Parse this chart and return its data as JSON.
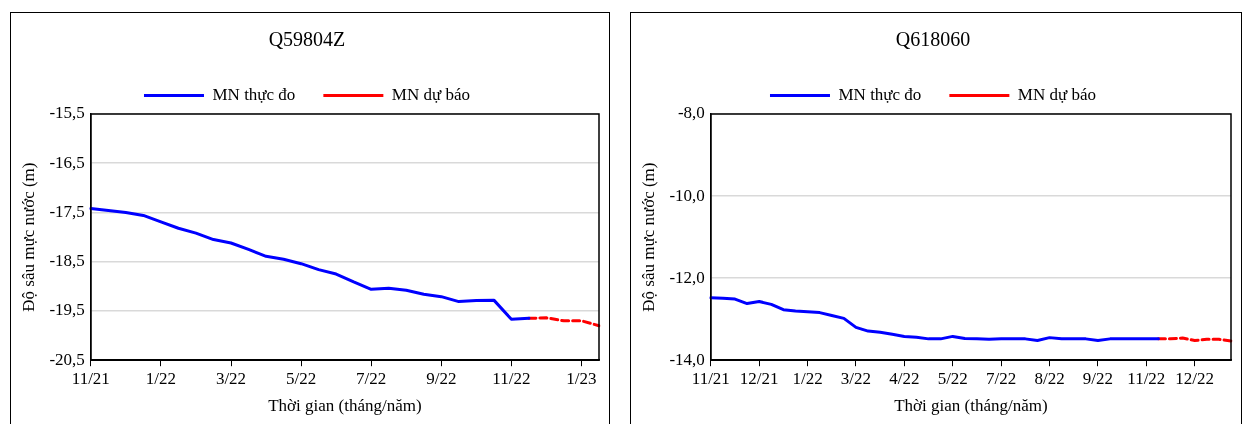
{
  "chart_data": [
    {
      "type": "line",
      "title": "Q59804Z",
      "xlabel": "Thời gian (tháng/năm)",
      "ylabel": "Độ sâu mực nước (m)",
      "categories": [
        "11/21",
        null,
        null,
        null,
        "1/22",
        null,
        null,
        null,
        "3/22",
        null,
        null,
        null,
        "5/22",
        null,
        null,
        null,
        "7/22",
        null,
        null,
        null,
        "9/22",
        null,
        null,
        null,
        "11/22",
        null,
        null,
        null,
        "1/23",
        null
      ],
      "series": [
        {
          "name": "MN thực đo",
          "color": "#0000ff",
          "line_style": "solid",
          "values": [
            -17.42,
            -17.46,
            -17.5,
            -17.56,
            -17.69,
            -17.82,
            -17.92,
            -18.05,
            -18.12,
            -18.25,
            -18.39,
            -18.45,
            -18.54,
            -18.66,
            -18.75,
            -18.91,
            -19.06,
            -19.04,
            -19.08,
            -19.16,
            -19.21,
            -19.31,
            -19.29,
            -19.28,
            -19.67,
            -19.65,
            null,
            null,
            null,
            null
          ]
        },
        {
          "name": "MN dự báo",
          "color": "#ff0000",
          "line_style": "dashed",
          "values": [
            null,
            null,
            null,
            null,
            null,
            null,
            null,
            null,
            null,
            null,
            null,
            null,
            null,
            null,
            null,
            null,
            null,
            null,
            null,
            null,
            null,
            null,
            null,
            null,
            null,
            -19.65,
            -19.64,
            -19.7,
            -19.7,
            -19.8
          ]
        }
      ],
      "ylim": [
        -20.5,
        -15.5
      ],
      "yticks": [
        {
          "value": -20.5,
          "label": "-20,5"
        },
        {
          "value": -19.5,
          "label": "-19,5"
        },
        {
          "value": -18.5,
          "label": "-18,5"
        },
        {
          "value": -17.5,
          "label": "-17,5"
        },
        {
          "value": -16.5,
          "label": "-16,5"
        },
        {
          "value": -15.5,
          "label": "-15,5"
        }
      ],
      "grid": "y",
      "legend": "top",
      "marker": "none"
    },
    {
      "type": "line",
      "title": "Q618060",
      "xlabel": "Thời gian (tháng/năm)",
      "ylabel": "Độ sâu mực nước (m)",
      "categories": [
        "11/21",
        null,
        null,
        null,
        "12/21",
        null,
        null,
        null,
        "1/22",
        null,
        null,
        null,
        "3/22",
        null,
        null,
        null,
        "4/22",
        null,
        null,
        null,
        "5/22",
        null,
        null,
        null,
        "7/22",
        null,
        null,
        null,
        "8/22",
        null,
        null,
        null,
        "9/22",
        null,
        null,
        null,
        "11/22",
        null,
        null,
        null,
        "12/22",
        null,
        null,
        null
      ],
      "series": [
        {
          "name": "MN thực đo",
          "color": "#0000ff",
          "line_style": "solid",
          "values": [
            -12.48,
            -12.49,
            -12.51,
            -12.62,
            -12.57,
            -12.64,
            -12.77,
            -12.8,
            -12.82,
            -12.84,
            -12.91,
            -12.98,
            -13.2,
            -13.29,
            -13.32,
            -13.37,
            -13.42,
            -13.44,
            -13.48,
            -13.48,
            -13.42,
            -13.47,
            -13.48,
            -13.49,
            -13.48,
            -13.48,
            -13.48,
            -13.52,
            -13.45,
            -13.48,
            -13.48,
            -13.48,
            -13.52,
            -13.48,
            -13.48,
            -13.48,
            -13.48,
            -13.48,
            null,
            null,
            null,
            null,
            null,
            null
          ]
        },
        {
          "name": "MN dự báo",
          "color": "#ff0000",
          "line_style": "dashed",
          "values": [
            null,
            null,
            null,
            null,
            null,
            null,
            null,
            null,
            null,
            null,
            null,
            null,
            null,
            null,
            null,
            null,
            null,
            null,
            null,
            null,
            null,
            null,
            null,
            null,
            null,
            null,
            null,
            null,
            null,
            null,
            null,
            null,
            null,
            null,
            null,
            null,
            null,
            -13.48,
            -13.48,
            -13.46,
            -13.52,
            -13.49,
            -13.49,
            -13.53
          ]
        }
      ],
      "ylim": [
        -14,
        -8
      ],
      "yticks": [
        {
          "value": -14,
          "label": "-14,0"
        },
        {
          "value": -12,
          "label": "-12,0"
        },
        {
          "value": -10,
          "label": "-10,0"
        },
        {
          "value": -8,
          "label": "-8,0"
        }
      ],
      "grid": "y",
      "legend": "top",
      "marker": "none"
    }
  ]
}
